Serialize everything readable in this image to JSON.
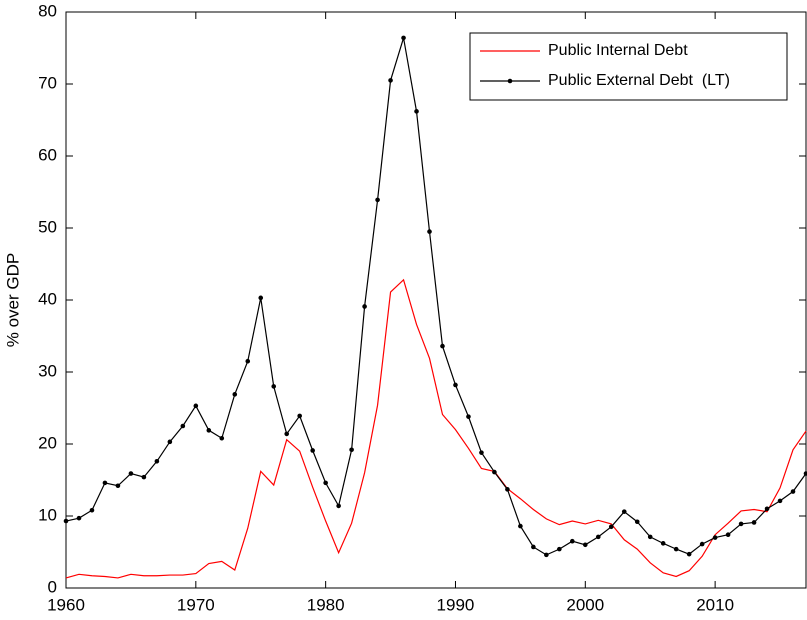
{
  "chart_data": {
    "type": "line",
    "ylabel": "% over GDP",
    "x": [
      1960,
      1961,
      1962,
      1963,
      1964,
      1965,
      1966,
      1967,
      1968,
      1969,
      1970,
      1971,
      1972,
      1973,
      1974,
      1975,
      1976,
      1977,
      1978,
      1979,
      1980,
      1981,
      1982,
      1983,
      1984,
      1985,
      1986,
      1987,
      1988,
      1989,
      1990,
      1991,
      1992,
      1993,
      1994,
      1995,
      1996,
      1997,
      1998,
      1999,
      2000,
      2001,
      2002,
      2003,
      2004,
      2005,
      2006,
      2007,
      2008,
      2009,
      2010,
      2011,
      2012,
      2013,
      2014,
      2015,
      2016,
      2017
    ],
    "series": [
      {
        "name": "Public Internal Debt",
        "color": "#ff0000",
        "marker": false,
        "values": [
          1.4,
          1.9,
          1.7,
          1.6,
          1.4,
          1.9,
          1.7,
          1.7,
          1.8,
          1.8,
          2.0,
          3.4,
          3.7,
          2.5,
          8.3,
          16.2,
          14.3,
          20.6,
          19.0,
          14.0,
          9.3,
          4.9,
          9.0,
          16.0,
          25.4,
          41.1,
          42.8,
          36.6,
          31.9,
          24.1,
          22.0,
          19.4,
          16.6,
          16.2,
          13.8,
          12.4,
          10.9,
          9.6,
          8.8,
          9.3,
          8.9,
          9.4,
          8.9,
          6.7,
          5.4,
          3.5,
          2.1,
          1.6,
          2.4,
          4.4,
          7.4,
          9.0,
          10.7,
          10.9,
          10.6,
          13.9,
          19.2,
          21.8
        ]
      },
      {
        "name": "Public External Debt  (LT)",
        "color": "#000000",
        "marker": true,
        "values": [
          9.3,
          9.7,
          10.8,
          14.6,
          14.2,
          15.9,
          15.4,
          17.6,
          20.3,
          22.5,
          25.3,
          21.9,
          20.8,
          26.9,
          31.5,
          40.3,
          28.0,
          21.4,
          23.9,
          19.1,
          14.6,
          11.4,
          19.2,
          39.1,
          53.9,
          70.5,
          76.4,
          66.2,
          49.5,
          33.6,
          28.2,
          23.8,
          18.8,
          16.1,
          13.7,
          8.6,
          5.7,
          4.6,
          5.4,
          6.5,
          6.0,
          7.1,
          8.5,
          10.6,
          9.2,
          7.1,
          6.2,
          5.4,
          4.7,
          6.1,
          7.0,
          7.4,
          8.9,
          9.1,
          11.0,
          12.1,
          13.4,
          15.9
        ]
      }
    ],
    "xlim": [
      1960,
      2017
    ],
    "xticks": [
      1960,
      1970,
      1980,
      1990,
      2000,
      2010
    ],
    "ylim": [
      0,
      80
    ],
    "yticks": [
      0,
      10,
      20,
      30,
      40,
      50,
      60,
      70,
      80
    ],
    "grid": false,
    "legend": "top-right"
  }
}
